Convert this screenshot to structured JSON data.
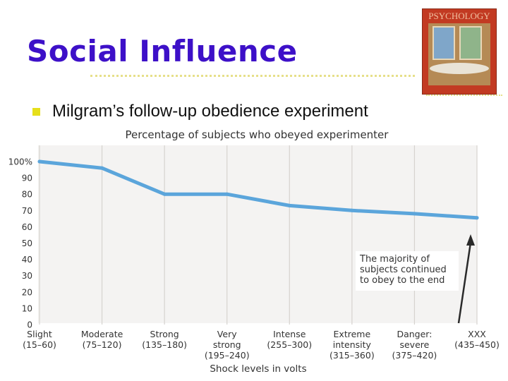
{
  "slide": {
    "title": "Social Influence",
    "bullet": "Milgram’s follow-up obedience experiment"
  },
  "book": {
    "title": "PSYCHOLOGY"
  },
  "colors": {
    "title": "#3d10c8",
    "bullet": "#e6df1b",
    "line": "#5ba5db",
    "plot_bg": "#f4f3f2"
  },
  "chart_data": {
    "type": "line",
    "title": "Percentage of subjects who obeyed experimenter",
    "xlabel": "Shock levels in volts",
    "ylabel": "",
    "ylim": [
      0,
      100
    ],
    "y_ticks": [
      "100%",
      "90",
      "80",
      "70",
      "60",
      "50",
      "40",
      "30",
      "20",
      "10",
      "0"
    ],
    "categories": [
      [
        "Slight",
        "(15–60)"
      ],
      [
        "Moderate",
        "(75–120)"
      ],
      [
        "Strong",
        "(135–180)"
      ],
      [
        "Very",
        "strong",
        "(195–240)"
      ],
      [
        "Intense",
        "(255–300)"
      ],
      [
        "Extreme",
        "intensity",
        "(315–360)"
      ],
      [
        "Danger:",
        "severe",
        "(375–420)"
      ],
      [
        "XXX",
        "(435–450)"
      ]
    ],
    "x": [
      0,
      1,
      2,
      3,
      4,
      5,
      6,
      7
    ],
    "values": [
      100,
      96,
      80,
      80,
      73,
      70,
      68,
      65.5
    ],
    "grid": true,
    "annotation": {
      "lines": [
        "The majority of",
        "subjects continued",
        "to obey to the end"
      ]
    }
  }
}
